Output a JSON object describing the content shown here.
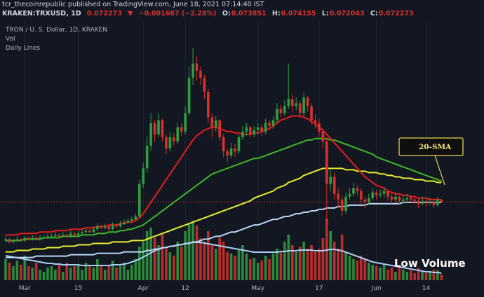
{
  "chart_data": {
    "type": "candlestick",
    "published": "tcr_thecoinrepublic published on TradingView.com, June 18, 2021 07:14:40 IST",
    "symbol": "KRAKEN:TRXUSD, 1D",
    "change_arrow": "▼",
    "change": "−0.001687 (−2.28%)",
    "ohlc_labels": [
      "O:",
      "H:",
      "L:",
      "C:"
    ],
    "legend": [
      "TRON / U. S. Dollar, 1D, KRAKEN",
      "Vol",
      "Daily Lines"
    ],
    "annotations": [
      "20-SMA",
      "Low Volume"
    ],
    "up_color": "#2f9e3f",
    "down_color": "#d9302c",
    "ylim": [
      0.017,
      0.205
    ],
    "categories": [
      null,
      null,
      null,
      null,
      null,
      "Mar",
      null,
      null,
      null,
      null,
      null,
      null,
      null,
      null,
      null,
      null,
      null,
      null,
      null,
      "15",
      null,
      null,
      null,
      null,
      null,
      null,
      null,
      null,
      null,
      null,
      null,
      null,
      null,
      null,
      null,
      null,
      "Apr",
      null,
      null,
      null,
      null,
      null,
      null,
      null,
      null,
      null,
      null,
      "12",
      null,
      null,
      null,
      null,
      null,
      null,
      null,
      null,
      null,
      null,
      null,
      null,
      null,
      null,
      null,
      null,
      null,
      null,
      "May",
      null,
      null,
      null,
      null,
      null,
      null,
      null,
      null,
      null,
      null,
      null,
      null,
      null,
      null,
      null,
      "17",
      null,
      null,
      null,
      null,
      null,
      null,
      null,
      null,
      null,
      null,
      null,
      null,
      null,
      null,
      "Jun",
      null,
      null,
      null,
      null,
      null,
      null,
      null,
      null,
      null,
      null,
      null,
      null,
      "14",
      null,
      null,
      null,
      null
    ],
    "open": [
      0.045,
      0.046,
      0.044,
      0.045,
      0.046,
      0.045,
      0.047,
      0.046,
      0.047,
      0.046,
      0.047,
      0.047,
      0.048,
      0.048,
      0.049,
      0.048,
      0.049,
      0.048,
      0.05,
      0.049,
      0.05,
      0.051,
      0.052,
      0.051,
      0.053,
      0.055,
      0.054,
      0.055,
      0.053,
      0.056,
      0.055,
      0.057,
      0.058,
      0.059,
      0.06,
      0.062,
      0.085,
      0.096,
      0.112,
      0.128,
      0.12,
      0.13,
      0.118,
      0.11,
      0.118,
      0.115,
      0.125,
      0.122,
      0.135,
      0.16,
      0.17,
      0.165,
      0.16,
      0.15,
      0.132,
      0.125,
      0.13,
      0.118,
      0.108,
      0.105,
      0.11,
      0.108,
      0.118,
      0.122,
      0.125,
      0.12,
      0.123,
      0.125,
      0.122,
      0.128,
      0.126,
      0.13,
      0.138,
      0.135,
      0.14,
      0.145,
      0.14,
      0.142,
      0.135,
      0.146,
      0.14,
      0.13,
      0.128,
      0.122,
      0.115,
      0.085,
      0.09,
      0.078,
      0.074,
      0.066,
      0.076,
      0.078,
      0.082,
      0.08,
      0.074,
      0.072,
      0.075,
      0.079,
      0.077,
      0.078,
      0.08,
      0.076,
      0.074,
      0.076,
      0.073,
      0.074,
      0.075,
      0.074,
      0.073,
      0.071,
      0.073,
      0.072,
      0.072,
      0.07,
      0.073851
    ],
    "high": [
      0.048,
      0.047,
      0.046,
      0.048,
      0.047,
      0.048,
      0.048,
      0.049,
      0.048,
      0.049,
      0.049,
      0.05,
      0.05,
      0.051,
      0.05,
      0.051,
      0.05,
      0.052,
      0.051,
      0.052,
      0.053,
      0.054,
      0.053,
      0.055,
      0.057,
      0.056,
      0.057,
      0.056,
      0.058,
      0.057,
      0.059,
      0.06,
      0.061,
      0.062,
      0.064,
      0.088,
      0.1,
      0.118,
      0.135,
      0.13,
      0.135,
      0.131,
      0.12,
      0.122,
      0.121,
      0.128,
      0.128,
      0.14,
      0.168,
      0.181,
      0.175,
      0.168,
      0.162,
      0.152,
      0.135,
      0.133,
      0.131,
      0.12,
      0.11,
      0.114,
      0.113,
      0.12,
      0.126,
      0.128,
      0.126,
      0.126,
      0.128,
      0.127,
      0.131,
      0.13,
      0.133,
      0.142,
      0.141,
      0.144,
      0.17,
      0.148,
      0.146,
      0.144,
      0.15,
      0.147,
      0.142,
      0.134,
      0.131,
      0.124,
      0.118,
      0.095,
      0.093,
      0.082,
      0.077,
      0.079,
      0.082,
      0.086,
      0.084,
      0.082,
      0.076,
      0.078,
      0.082,
      0.081,
      0.081,
      0.083,
      0.081,
      0.078,
      0.079,
      0.077,
      0.077,
      0.078,
      0.077,
      0.076,
      0.075,
      0.076,
      0.075,
      0.075,
      0.074,
      0.076,
      0.074155
    ],
    "low": [
      0.044,
      0.043,
      0.043,
      0.044,
      0.044,
      0.044,
      0.045,
      0.045,
      0.045,
      0.045,
      0.046,
      0.046,
      0.047,
      0.047,
      0.047,
      0.047,
      0.047,
      0.047,
      0.048,
      0.048,
      0.049,
      0.05,
      0.05,
      0.05,
      0.052,
      0.053,
      0.053,
      0.052,
      0.052,
      0.054,
      0.054,
      0.056,
      0.057,
      0.058,
      0.059,
      0.061,
      0.082,
      0.093,
      0.108,
      0.115,
      0.118,
      0.115,
      0.106,
      0.108,
      0.112,
      0.113,
      0.119,
      0.12,
      0.133,
      0.155,
      0.158,
      0.155,
      0.145,
      0.128,
      0.118,
      0.122,
      0.115,
      0.104,
      0.1,
      0.103,
      0.104,
      0.106,
      0.116,
      0.119,
      0.118,
      0.118,
      0.12,
      0.119,
      0.12,
      0.123,
      0.124,
      0.128,
      0.132,
      0.133,
      0.138,
      0.136,
      0.137,
      0.132,
      0.133,
      0.136,
      0.127,
      0.124,
      0.118,
      0.11,
      0.057,
      0.08,
      0.074,
      0.068,
      0.062,
      0.064,
      0.074,
      0.076,
      0.077,
      0.071,
      0.068,
      0.07,
      0.074,
      0.074,
      0.075,
      0.075,
      0.073,
      0.071,
      0.072,
      0.07,
      0.071,
      0.072,
      0.072,
      0.071,
      0.068,
      0.07,
      0.069,
      0.07,
      0.068,
      0.069,
      0.072043
    ],
    "close": [
      0.046,
      0.044,
      0.045,
      0.046,
      0.045,
      0.047,
      0.046,
      0.047,
      0.046,
      0.047,
      0.047,
      0.048,
      0.048,
      0.049,
      0.048,
      0.049,
      0.048,
      0.05,
      0.049,
      0.05,
      0.051,
      0.052,
      0.051,
      0.053,
      0.055,
      0.054,
      0.055,
      0.053,
      0.056,
      0.055,
      0.057,
      0.058,
      0.059,
      0.06,
      0.062,
      0.085,
      0.096,
      0.112,
      0.128,
      0.12,
      0.13,
      0.118,
      0.11,
      0.118,
      0.115,
      0.125,
      0.122,
      0.135,
      0.16,
      0.17,
      0.165,
      0.16,
      0.15,
      0.132,
      0.125,
      0.13,
      0.118,
      0.108,
      0.105,
      0.11,
      0.108,
      0.118,
      0.122,
      0.125,
      0.12,
      0.123,
      0.125,
      0.122,
      0.128,
      0.126,
      0.13,
      0.138,
      0.135,
      0.14,
      0.145,
      0.14,
      0.142,
      0.135,
      0.146,
      0.14,
      0.13,
      0.128,
      0.122,
      0.115,
      0.085,
      0.09,
      0.078,
      0.074,
      0.066,
      0.076,
      0.078,
      0.082,
      0.08,
      0.074,
      0.072,
      0.075,
      0.079,
      0.077,
      0.078,
      0.08,
      0.076,
      0.074,
      0.076,
      0.073,
      0.074,
      0.075,
      0.074,
      0.073,
      0.071,
      0.073,
      0.072,
      0.072,
      0.07,
      0.074,
      0.072273
    ],
    "series": [
      {
        "color": "#b9d6f2",
        "values": [
          0.033,
          0.033,
          0.033,
          0.033,
          0.033,
          0.033,
          0.033,
          0.033,
          0.034,
          0.034,
          0.034,
          0.034,
          0.034,
          0.034,
          0.034,
          0.034,
          0.034,
          0.035,
          0.035,
          0.035,
          0.035,
          0.035,
          0.035,
          0.035,
          0.036,
          0.036,
          0.036,
          0.036,
          0.036,
          0.036,
          0.036,
          0.037,
          0.037,
          0.037,
          0.037,
          0.037,
          0.037,
          0.038,
          0.038,
          0.039,
          0.039,
          0.04,
          0.04,
          0.041,
          0.041,
          0.042,
          0.042,
          0.043,
          0.043,
          0.044,
          0.044,
          0.045,
          0.046,
          0.046,
          0.047,
          0.048,
          0.048,
          0.049,
          0.05,
          0.051,
          0.051,
          0.052,
          0.053,
          0.054,
          0.055,
          0.056,
          0.056,
          0.057,
          0.058,
          0.059,
          0.06,
          0.06,
          0.061,
          0.062,
          0.062,
          0.063,
          0.064,
          0.064,
          0.065,
          0.065,
          0.066,
          0.066,
          0.067,
          0.067,
          0.068,
          0.068,
          0.068,
          0.069,
          0.069,
          0.069,
          0.07,
          0.07,
          0.07,
          0.07,
          0.07,
          0.071,
          0.071,
          0.071,
          0.071,
          0.071,
          0.071,
          0.071,
          0.071,
          0.071,
          0.072,
          0.072,
          0.072,
          0.072,
          0.072,
          0.072,
          0.072,
          0.072,
          0.072,
          0.072,
          0.072
        ]
      },
      {
        "color": "#e6ee2e",
        "values": [
          0.037,
          0.037,
          0.037,
          0.038,
          0.038,
          0.038,
          0.038,
          0.039,
          0.039,
          0.039,
          0.039,
          0.04,
          0.04,
          0.04,
          0.04,
          0.041,
          0.041,
          0.041,
          0.041,
          0.042,
          0.042,
          0.042,
          0.042,
          0.043,
          0.043,
          0.043,
          0.043,
          0.043,
          0.044,
          0.044,
          0.044,
          0.044,
          0.044,
          0.045,
          0.045,
          0.045,
          0.045,
          0.046,
          0.047,
          0.048,
          0.049,
          0.05,
          0.051,
          0.052,
          0.053,
          0.054,
          0.055,
          0.056,
          0.057,
          0.058,
          0.059,
          0.06,
          0.061,
          0.062,
          0.063,
          0.064,
          0.065,
          0.066,
          0.067,
          0.068,
          0.069,
          0.07,
          0.071,
          0.072,
          0.073,
          0.075,
          0.076,
          0.077,
          0.078,
          0.079,
          0.08,
          0.082,
          0.083,
          0.084,
          0.086,
          0.087,
          0.088,
          0.089,
          0.091,
          0.092,
          0.093,
          0.094,
          0.095,
          0.096,
          0.096,
          0.096,
          0.096,
          0.096,
          0.096,
          0.095,
          0.095,
          0.095,
          0.094,
          0.094,
          0.094,
          0.093,
          0.093,
          0.093,
          0.092,
          0.092,
          0.091,
          0.091,
          0.09,
          0.09,
          0.089,
          0.089,
          0.089,
          0.088,
          0.088,
          0.088,
          0.087,
          0.087,
          0.087,
          0.086,
          0.086
        ]
      },
      {
        "color": "#3db824",
        "values": [
          0.045,
          0.045,
          0.045,
          0.045,
          0.045,
          0.046,
          0.046,
          0.046,
          0.046,
          0.046,
          0.047,
          0.047,
          0.047,
          0.047,
          0.047,
          0.048,
          0.048,
          0.048,
          0.048,
          0.048,
          0.049,
          0.049,
          0.049,
          0.049,
          0.05,
          0.05,
          0.05,
          0.051,
          0.051,
          0.051,
          0.052,
          0.052,
          0.053,
          0.053,
          0.054,
          0.055,
          0.056,
          0.058,
          0.06,
          0.062,
          0.064,
          0.066,
          0.068,
          0.07,
          0.072,
          0.074,
          0.076,
          0.078,
          0.08,
          0.082,
          0.084,
          0.086,
          0.088,
          0.09,
          0.092,
          0.093,
          0.094,
          0.095,
          0.096,
          0.097,
          0.098,
          0.099,
          0.1,
          0.101,
          0.102,
          0.103,
          0.103,
          0.104,
          0.105,
          0.106,
          0.107,
          0.108,
          0.109,
          0.11,
          0.111,
          0.112,
          0.113,
          0.114,
          0.115,
          0.116,
          0.116,
          0.117,
          0.117,
          0.117,
          0.117,
          0.116,
          0.116,
          0.115,
          0.114,
          0.113,
          0.112,
          0.111,
          0.11,
          0.109,
          0.108,
          0.107,
          0.106,
          0.104,
          0.103,
          0.102,
          0.101,
          0.1,
          0.099,
          0.098,
          0.097,
          0.096,
          0.095,
          0.094,
          0.093,
          0.092,
          0.091,
          0.09,
          0.089,
          0.088,
          0.087
        ]
      },
      {
        "color": "#e51c1c",
        "values": [
          0.049,
          0.049,
          0.049,
          0.049,
          0.05,
          0.05,
          0.05,
          0.05,
          0.05,
          0.051,
          0.051,
          0.051,
          0.051,
          0.052,
          0.052,
          0.052,
          0.052,
          0.053,
          0.053,
          0.053,
          0.053,
          0.054,
          0.054,
          0.054,
          0.055,
          0.055,
          0.055,
          0.056,
          0.056,
          0.056,
          0.057,
          0.057,
          0.058,
          0.058,
          0.059,
          0.061,
          0.064,
          0.068,
          0.072,
          0.076,
          0.08,
          0.084,
          0.088,
          0.092,
          0.096,
          0.1,
          0.104,
          0.108,
          0.112,
          0.116,
          0.119,
          0.121,
          0.123,
          0.124,
          0.125,
          0.125,
          0.124,
          0.123,
          0.122,
          0.122,
          0.121,
          0.121,
          0.12,
          0.12,
          0.12,
          0.121,
          0.121,
          0.122,
          0.123,
          0.124,
          0.126,
          0.128,
          0.13,
          0.131,
          0.132,
          0.133,
          0.133,
          0.133,
          0.132,
          0.131,
          0.129,
          0.127,
          0.125,
          0.123,
          0.12,
          0.117,
          0.114,
          0.111,
          0.108,
          0.105,
          0.102,
          0.099,
          0.096,
          0.093,
          0.09,
          0.088,
          0.086,
          0.084,
          0.083,
          0.082,
          0.08,
          0.079,
          0.078,
          0.078,
          0.077,
          0.077,
          0.076,
          0.076,
          0.075,
          0.075,
          0.075,
          0.074,
          0.074,
          0.074,
          0.074
        ]
      }
    ],
    "vlim": [
      0,
      100
    ],
    "volume": [
      30,
      25,
      20,
      28,
      22,
      35,
      20,
      18,
      25,
      15,
      12,
      18,
      20,
      15,
      22,
      12,
      25,
      18,
      20,
      22,
      15,
      25,
      20,
      18,
      30,
      20,
      15,
      22,
      28,
      18,
      20,
      25,
      15,
      22,
      30,
      48,
      55,
      70,
      75,
      60,
      50,
      65,
      45,
      40,
      35,
      55,
      48,
      70,
      80,
      85,
      78,
      60,
      55,
      70,
      50,
      45,
      60,
      55,
      40,
      38,
      35,
      45,
      50,
      38,
      30,
      32,
      25,
      28,
      35,
      30,
      38,
      45,
      40,
      55,
      65,
      50,
      40,
      48,
      55,
      45,
      50,
      40,
      45,
      60,
      88,
      70,
      55,
      45,
      65,
      40,
      35,
      30,
      28,
      35,
      30,
      25,
      22,
      20,
      18,
      22,
      15,
      18,
      12,
      20,
      15,
      12,
      14,
      10,
      18,
      12,
      10,
      12,
      15,
      14,
      8
    ],
    "volume_ma_color": "#a8cdf2",
    "volume_ma": [
      35,
      34,
      33,
      32,
      31,
      30,
      29,
      28,
      27,
      26,
      25,
      24,
      24,
      23,
      23,
      22,
      22,
      22,
      22,
      22,
      21,
      21,
      21,
      21,
      21,
      21,
      21,
      21,
      22,
      22,
      22,
      23,
      24,
      26,
      28,
      30,
      33,
      36,
      39,
      42,
      44,
      46,
      47,
      48,
      49,
      50,
      51,
      52,
      53,
      54,
      54,
      54,
      53,
      52,
      51,
      50,
      49,
      48,
      47,
      46,
      45,
      44,
      43,
      42,
      41,
      40,
      40,
      40,
      40,
      40,
      40,
      40,
      41,
      41,
      42,
      42,
      42,
      43,
      43,
      43,
      43,
      42,
      42,
      42,
      43,
      44,
      44,
      43,
      42,
      40,
      38,
      36,
      34,
      32,
      30,
      28,
      26,
      25,
      24,
      23,
      22,
      21,
      20,
      19,
      18,
      17,
      16,
      15,
      14,
      13,
      12,
      12,
      11,
      11,
      10
    ]
  }
}
